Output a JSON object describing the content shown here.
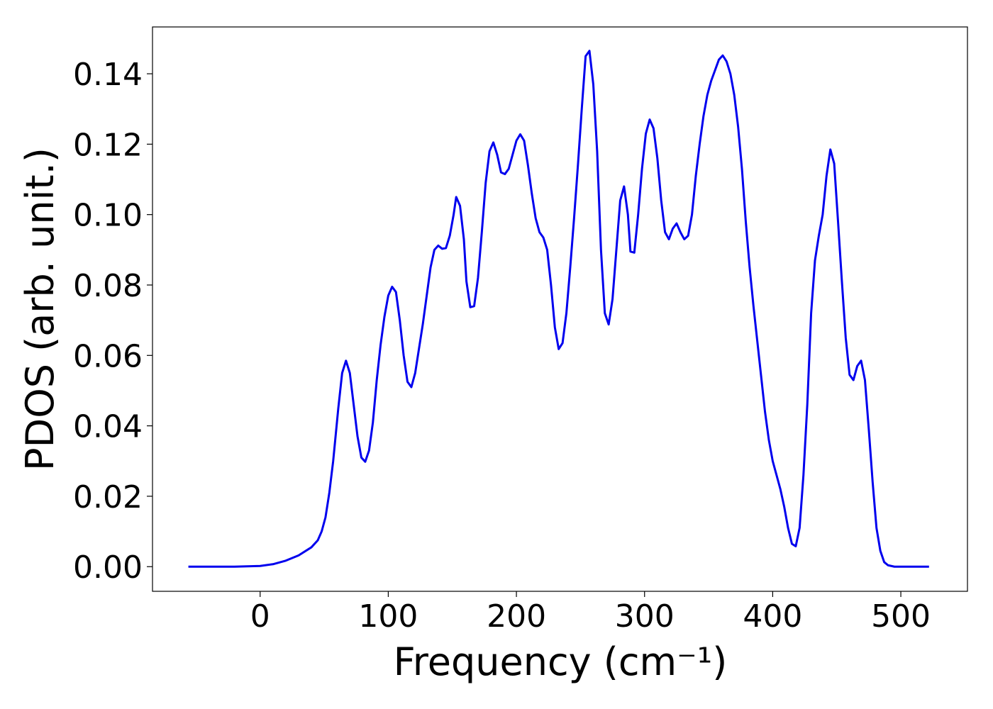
{
  "chart_data": {
    "type": "line",
    "x_label": "Frequency (cm⁻¹)",
    "y_label": "PDOS (arb. unit.)",
    "xlim": [
      -84,
      552
    ],
    "ylim": [
      -0.007,
      0.1533
    ],
    "xticks": [
      0,
      100,
      200,
      300,
      400,
      500
    ],
    "yticks": [
      {
        "value": 0,
        "label": "0.00"
      },
      {
        "value": 0.02,
        "label": "0.02"
      },
      {
        "value": 0.04,
        "label": "0.04"
      },
      {
        "value": 0.06,
        "label": "0.06"
      },
      {
        "value": 0.08,
        "label": "0.08"
      },
      {
        "value": 0.1,
        "label": "0.10"
      },
      {
        "value": 0.12,
        "label": "0.12"
      },
      {
        "value": 0.14,
        "label": "0.14"
      }
    ],
    "x": [
      -56,
      -20,
      0,
      10,
      20,
      30,
      40,
      45,
      48,
      51,
      54,
      57,
      61,
      64,
      67,
      70,
      73,
      76,
      79,
      82,
      85,
      88,
      91,
      94,
      97,
      100,
      103,
      106,
      109,
      112,
      115,
      118,
      121,
      124,
      127,
      130,
      133,
      136,
      139,
      142,
      145,
      148,
      151,
      153,
      156,
      159,
      161,
      164,
      167,
      170,
      173,
      176,
      179,
      182,
      185,
      188,
      191,
      194,
      197,
      200,
      203,
      206,
      209,
      212,
      215,
      218,
      221,
      224,
      227,
      230,
      233,
      236,
      239,
      242,
      245,
      248,
      251,
      254,
      257,
      260,
      263,
      266,
      269,
      272,
      275,
      278,
      281,
      284,
      287,
      289,
      292,
      295,
      298,
      301,
      304,
      307,
      310,
      313,
      316,
      319,
      322,
      325,
      328,
      331,
      334,
      337,
      340,
      343,
      346,
      349,
      352,
      355,
      358,
      361,
      364,
      367,
      370,
      373,
      376,
      379,
      382,
      385,
      388,
      391,
      394,
      397,
      400,
      403,
      406,
      409,
      412,
      415,
      418,
      421,
      424,
      427,
      430,
      433,
      436,
      439,
      442,
      445,
      448,
      451,
      454,
      457,
      460,
      463,
      466,
      469,
      472,
      475,
      478,
      481,
      484,
      487,
      490,
      495,
      522
    ],
    "series": [
      {
        "name": "PDOS",
        "color": "#0000ee",
        "values": [
          0,
          0,
          0.0002,
          0.0007,
          0.0017,
          0.0032,
          0.0055,
          0.0075,
          0.01,
          0.014,
          0.021,
          0.03,
          0.045,
          0.055,
          0.0585,
          0.055,
          0.046,
          0.037,
          0.031,
          0.0298,
          0.033,
          0.041,
          0.053,
          0.063,
          0.071,
          0.077,
          0.0795,
          0.078,
          0.07,
          0.06,
          0.0525,
          0.051,
          0.055,
          0.062,
          0.069,
          0.077,
          0.085,
          0.09,
          0.0912,
          0.0903,
          0.0905,
          0.094,
          0.1,
          0.105,
          0.1025,
          0.093,
          0.081,
          0.0737,
          0.074,
          0.082,
          0.095,
          0.109,
          0.118,
          0.1205,
          0.117,
          0.112,
          0.1115,
          0.113,
          0.117,
          0.121,
          0.1228,
          0.121,
          0.114,
          0.106,
          0.099,
          0.095,
          0.0935,
          0.09,
          0.08,
          0.068,
          0.0618,
          0.0635,
          0.072,
          0.085,
          0.099,
          0.114,
          0.13,
          0.145,
          0.1465,
          0.137,
          0.118,
          0.09,
          0.072,
          0.0688,
          0.076,
          0.09,
          0.104,
          0.108,
          0.1,
          0.0895,
          0.0892,
          0.1,
          0.113,
          0.123,
          0.127,
          0.1245,
          0.116,
          0.104,
          0.095,
          0.093,
          0.096,
          0.0975,
          0.095,
          0.093,
          0.094,
          0.1,
          0.111,
          0.12,
          0.128,
          0.134,
          0.138,
          0.141,
          0.144,
          0.1452,
          0.1435,
          0.14,
          0.134,
          0.125,
          0.113,
          0.098,
          0.085,
          0.074,
          0.064,
          0.054,
          0.044,
          0.036,
          0.03,
          0.026,
          0.022,
          0.017,
          0.011,
          0.0065,
          0.0058,
          0.011,
          0.026,
          0.046,
          0.072,
          0.087,
          0.094,
          0.1,
          0.111,
          0.1185,
          0.1145,
          0.098,
          0.081,
          0.065,
          0.0545,
          0.053,
          0.057,
          0.0585,
          0.053,
          0.039,
          0.024,
          0.011,
          0.0045,
          0.0013,
          0.0004,
          0,
          0
        ]
      }
    ]
  }
}
